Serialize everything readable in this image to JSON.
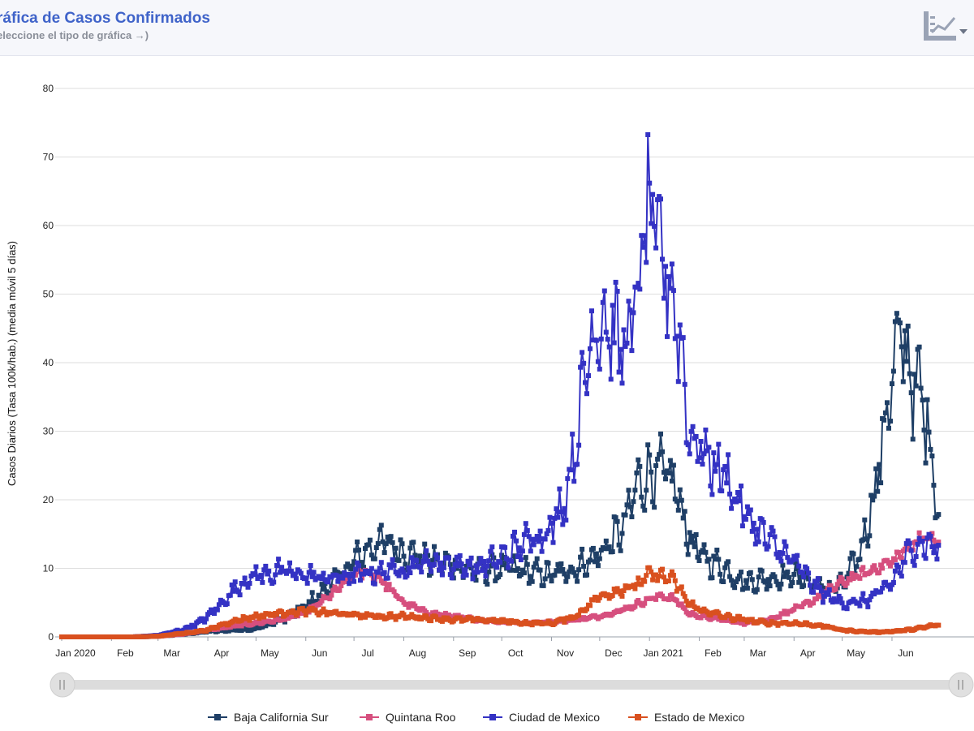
{
  "header": {
    "title": "ráfica de Casos Confirmados",
    "subtitle": "eleccione el tipo de gráfica →)",
    "menu_icon": "chart-type-menu-icon"
  },
  "colors": {
    "baja_california_sur": "#1f3f66",
    "quintana_roo": "#d64f7e",
    "ciudad_de_mexico": "#3432c4",
    "estado_de_mexico": "#d9501f"
  },
  "chart_data": {
    "type": "line",
    "title": "ráfica de Casos Confirmados",
    "xlabel": "",
    "ylabel": "Casos Diarios (Tasa 100k/hab.) (media móvil 5 días)",
    "ylim": [
      0,
      80
    ],
    "yticks": [
      0,
      10,
      20,
      30,
      40,
      50,
      60,
      70,
      80
    ],
    "x_unit": "days since 2020-01-01",
    "xlim": [
      0,
      562
    ],
    "xticks": [
      {
        "label": "Jan 2020",
        "day": 0
      },
      {
        "label": "Feb",
        "day": 31
      },
      {
        "label": "Mar",
        "day": 60
      },
      {
        "label": "Apr",
        "day": 91
      },
      {
        "label": "May",
        "day": 121
      },
      {
        "label": "Jun",
        "day": 152
      },
      {
        "label": "Jul",
        "day": 182
      },
      {
        "label": "Aug",
        "day": 213
      },
      {
        "label": "Sep",
        "day": 244
      },
      {
        "label": "Oct",
        "day": 274
      },
      {
        "label": "Nov",
        "day": 305
      },
      {
        "label": "Dec",
        "day": 335
      },
      {
        "label": "Jan 2021",
        "day": 366
      },
      {
        "label": "Feb",
        "day": 397
      },
      {
        "label": "Mar",
        "day": 425
      },
      {
        "label": "Apr",
        "day": 456
      },
      {
        "label": "May",
        "day": 486
      },
      {
        "label": "Jun",
        "day": 517
      }
    ],
    "grid": true,
    "legend_position": "bottom",
    "series": [
      {
        "name": "Baja California Sur",
        "key": "baja_california_sur",
        "anchors": [
          [
            0,
            0
          ],
          [
            45,
            0
          ],
          [
            60,
            0.1
          ],
          [
            75,
            0.4
          ],
          [
            91,
            0.8
          ],
          [
            106,
            1.0
          ],
          [
            121,
            1.2
          ],
          [
            137,
            2.5
          ],
          [
            152,
            4.5
          ],
          [
            167,
            7.5
          ],
          [
            182,
            11.0
          ],
          [
            198,
            14.0
          ],
          [
            213,
            12.5
          ],
          [
            228,
            11.0
          ],
          [
            244,
            10.5
          ],
          [
            259,
            9.5
          ],
          [
            274,
            10.0
          ],
          [
            290,
            9.5
          ],
          [
            305,
            9.0
          ],
          [
            320,
            10.0
          ],
          [
            335,
            12.0
          ],
          [
            350,
            16.0
          ],
          [
            358,
            22.0
          ],
          [
            366,
            24.0
          ],
          [
            374,
            24.0
          ],
          [
            382,
            22.0
          ],
          [
            390,
            15.0
          ],
          [
            397,
            12.0
          ],
          [
            412,
            10.0
          ],
          [
            425,
            8.0
          ],
          [
            440,
            8.5
          ],
          [
            456,
            9.0
          ],
          [
            466,
            8.0
          ],
          [
            476,
            7.0
          ],
          [
            486,
            7.5
          ],
          [
            497,
            12.0
          ],
          [
            507,
            22.0
          ],
          [
            517,
            38.0
          ],
          [
            523,
            44.0
          ],
          [
            529,
            38.0
          ],
          [
            535,
            35.0
          ],
          [
            540,
            30.0
          ],
          [
            546,
            18.0
          ]
        ],
        "noise": 0.22,
        "points": 546
      },
      {
        "name": "Quintana Roo",
        "key": "quintana_roo",
        "anchors": [
          [
            45,
            0
          ],
          [
            60,
            0.1
          ],
          [
            75,
            0.4
          ],
          [
            91,
            1.0
          ],
          [
            106,
            1.5
          ],
          [
            121,
            2.0
          ],
          [
            137,
            2.5
          ],
          [
            152,
            3.5
          ],
          [
            167,
            6.0
          ],
          [
            182,
            9.0
          ],
          [
            190,
            9.5
          ],
          [
            198,
            8.5
          ],
          [
            213,
            5.0
          ],
          [
            228,
            3.5
          ],
          [
            244,
            3.0
          ],
          [
            259,
            2.5
          ],
          [
            274,
            2.2
          ],
          [
            290,
            2.0
          ],
          [
            305,
            2.2
          ],
          [
            320,
            2.5
          ],
          [
            335,
            3.0
          ],
          [
            350,
            4.0
          ],
          [
            366,
            5.5
          ],
          [
            374,
            6.0
          ],
          [
            382,
            5.5
          ],
          [
            390,
            3.5
          ],
          [
            397,
            3.0
          ],
          [
            412,
            2.5
          ],
          [
            425,
            2.0
          ],
          [
            440,
            2.5
          ],
          [
            456,
            4.0
          ],
          [
            466,
            5.0
          ],
          [
            476,
            6.5
          ],
          [
            486,
            8.0
          ],
          [
            497,
            9.0
          ],
          [
            507,
            10.0
          ],
          [
            517,
            11.0
          ],
          [
            527,
            13.0
          ],
          [
            535,
            14.5
          ],
          [
            546,
            14.0
          ]
        ],
        "noise": 0.1,
        "points": 502
      },
      {
        "name": "Ciudad de Mexico",
        "key": "ciudad_de_mexico",
        "anchors": [
          [
            45,
            0
          ],
          [
            60,
            0.2
          ],
          [
            75,
            1.0
          ],
          [
            85,
            2.0
          ],
          [
            91,
            3.0
          ],
          [
            100,
            5.0
          ],
          [
            110,
            7.5
          ],
          [
            121,
            9.0
          ],
          [
            137,
            9.5
          ],
          [
            152,
            9.0
          ],
          [
            167,
            8.5
          ],
          [
            182,
            9.0
          ],
          [
            198,
            9.5
          ],
          [
            213,
            10.0
          ],
          [
            228,
            11.0
          ],
          [
            244,
            10.5
          ],
          [
            259,
            10.0
          ],
          [
            274,
            11.5
          ],
          [
            290,
            14.0
          ],
          [
            305,
            16.0
          ],
          [
            313,
            20.0
          ],
          [
            320,
            28.0
          ],
          [
            328,
            42.0
          ],
          [
            335,
            47.0
          ],
          [
            342,
            45.0
          ],
          [
            350,
            42.0
          ],
          [
            358,
            48.0
          ],
          [
            363,
            60.0
          ],
          [
            366,
            62.0
          ],
          [
            370,
            58.0
          ],
          [
            374,
            55.0
          ],
          [
            378,
            52.0
          ],
          [
            382,
            48.0
          ],
          [
            386,
            42.0
          ],
          [
            390,
            30.0
          ],
          [
            397,
            28.0
          ],
          [
            405,
            25.0
          ],
          [
            412,
            24.0
          ],
          [
            425,
            18.0
          ],
          [
            440,
            14.0
          ],
          [
            456,
            11.0
          ],
          [
            466,
            8.0
          ],
          [
            476,
            6.0
          ],
          [
            486,
            5.0
          ],
          [
            497,
            5.0
          ],
          [
            507,
            6.0
          ],
          [
            517,
            8.0
          ],
          [
            527,
            12.0
          ],
          [
            535,
            14.0
          ],
          [
            546,
            13.0
          ]
        ],
        "noise": 0.2,
        "points": 502
      },
      {
        "name": "Estado de Mexico",
        "key": "estado_de_mexico",
        "anchors": [
          [
            0,
            0
          ],
          [
            45,
            0
          ],
          [
            60,
            0.1
          ],
          [
            75,
            0.5
          ],
          [
            91,
            1.0
          ],
          [
            100,
            1.8
          ],
          [
            110,
            2.5
          ],
          [
            121,
            3.0
          ],
          [
            137,
            3.5
          ],
          [
            152,
            3.8
          ],
          [
            167,
            3.5
          ],
          [
            182,
            3.2
          ],
          [
            198,
            3.0
          ],
          [
            213,
            3.0
          ],
          [
            228,
            2.8
          ],
          [
            244,
            2.5
          ],
          [
            259,
            2.5
          ],
          [
            274,
            2.3
          ],
          [
            290,
            2.0
          ],
          [
            305,
            2.0
          ],
          [
            320,
            3.0
          ],
          [
            335,
            6.0
          ],
          [
            350,
            7.0
          ],
          [
            358,
            7.5
          ],
          [
            366,
            9.0
          ],
          [
            374,
            9.0
          ],
          [
            382,
            8.0
          ],
          [
            390,
            5.0
          ],
          [
            397,
            4.0
          ],
          [
            412,
            3.0
          ],
          [
            425,
            2.5
          ],
          [
            440,
            2.0
          ],
          [
            456,
            2.0
          ],
          [
            466,
            1.8
          ],
          [
            476,
            1.5
          ],
          [
            486,
            1.0
          ],
          [
            497,
            0.8
          ],
          [
            507,
            0.7
          ],
          [
            517,
            0.8
          ],
          [
            527,
            1.0
          ],
          [
            535,
            1.3
          ],
          [
            546,
            1.8
          ]
        ],
        "noise": 0.15,
        "points": 546
      }
    ]
  },
  "legend": [
    {
      "label": "Baja California Sur",
      "key": "baja_california_sur"
    },
    {
      "label": "Quintana Roo",
      "key": "quintana_roo"
    },
    {
      "label": "Ciudad de Mexico",
      "key": "ciudad_de_mexico"
    },
    {
      "label": "Estado de Mexico",
      "key": "estado_de_mexico"
    }
  ],
  "navigator": {
    "left_handle_icon": "drag-handle-icon",
    "right_handle_icon": "drag-handle-icon"
  }
}
